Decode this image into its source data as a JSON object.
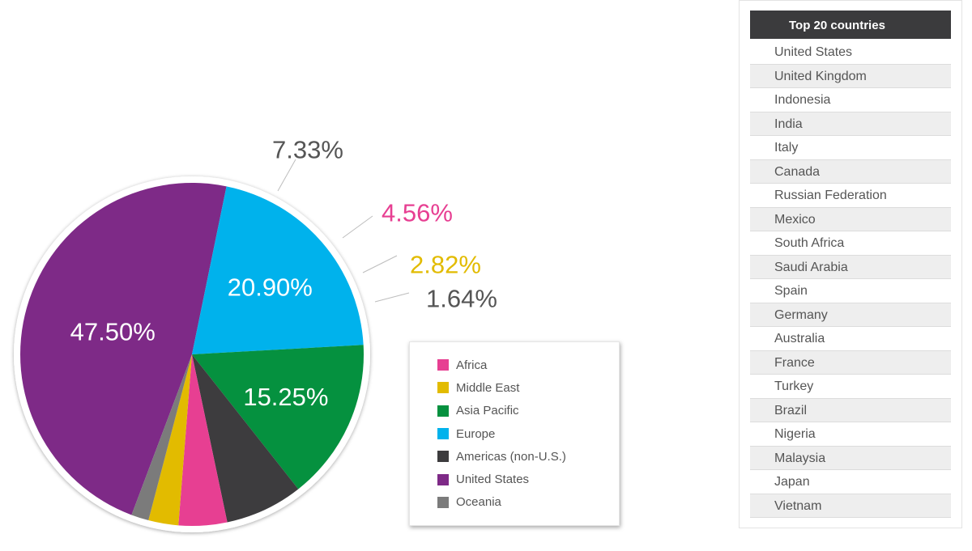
{
  "chart_data": {
    "type": "pie",
    "slices": [
      {
        "name": "United States",
        "value": 47.5,
        "label": "47.50%",
        "color": "#7e2a87"
      },
      {
        "name": "Europe",
        "value": 20.9,
        "label": "20.90%",
        "color": "#00b2ec"
      },
      {
        "name": "Asia Pacific",
        "value": 15.25,
        "label": "15.25%",
        "color": "#05913f"
      },
      {
        "name": "Americas (non-U.S.)",
        "value": 7.33,
        "label": "7.33%",
        "color": "#3d3c3e"
      },
      {
        "name": "Africa",
        "value": 4.56,
        "label": "4.56%",
        "color": "#e73f92"
      },
      {
        "name": "Middle East",
        "value": 2.82,
        "label": "2.82%",
        "color": "#e2bb00"
      },
      {
        "name": "Oceania",
        "value": 1.64,
        "label": "1.64%",
        "color": "#7b7b7b"
      }
    ],
    "legend": {
      "placement": "bottom-right of pie",
      "items": [
        {
          "label": "Africa",
          "color": "#e73f92"
        },
        {
          "label": "Middle East",
          "color": "#e2bb00"
        },
        {
          "label": "Asia Pacific",
          "color": "#05913f"
        },
        {
          "label": "Europe",
          "color": "#00b2ec"
        },
        {
          "label": "Americas (non-U.S.)",
          "color": "#3d3c3e"
        },
        {
          "label": "United States",
          "color": "#7e2a87"
        },
        {
          "label": "Oceania",
          "color": "#7b7b7b"
        }
      ]
    }
  },
  "countries_table": {
    "header": "Top 20 countries",
    "rows": [
      "United States",
      "United Kingdom",
      "Indonesia",
      "India",
      " Italy",
      "Canada",
      "Russian Federation",
      "Mexico",
      "South Africa",
      "Saudi Arabia",
      "Spain",
      "Germany",
      "Australia",
      "France",
      "Turkey",
      "Brazil",
      "Nigeria",
      "Malaysia",
      "Japan",
      "Vietnam"
    ]
  }
}
